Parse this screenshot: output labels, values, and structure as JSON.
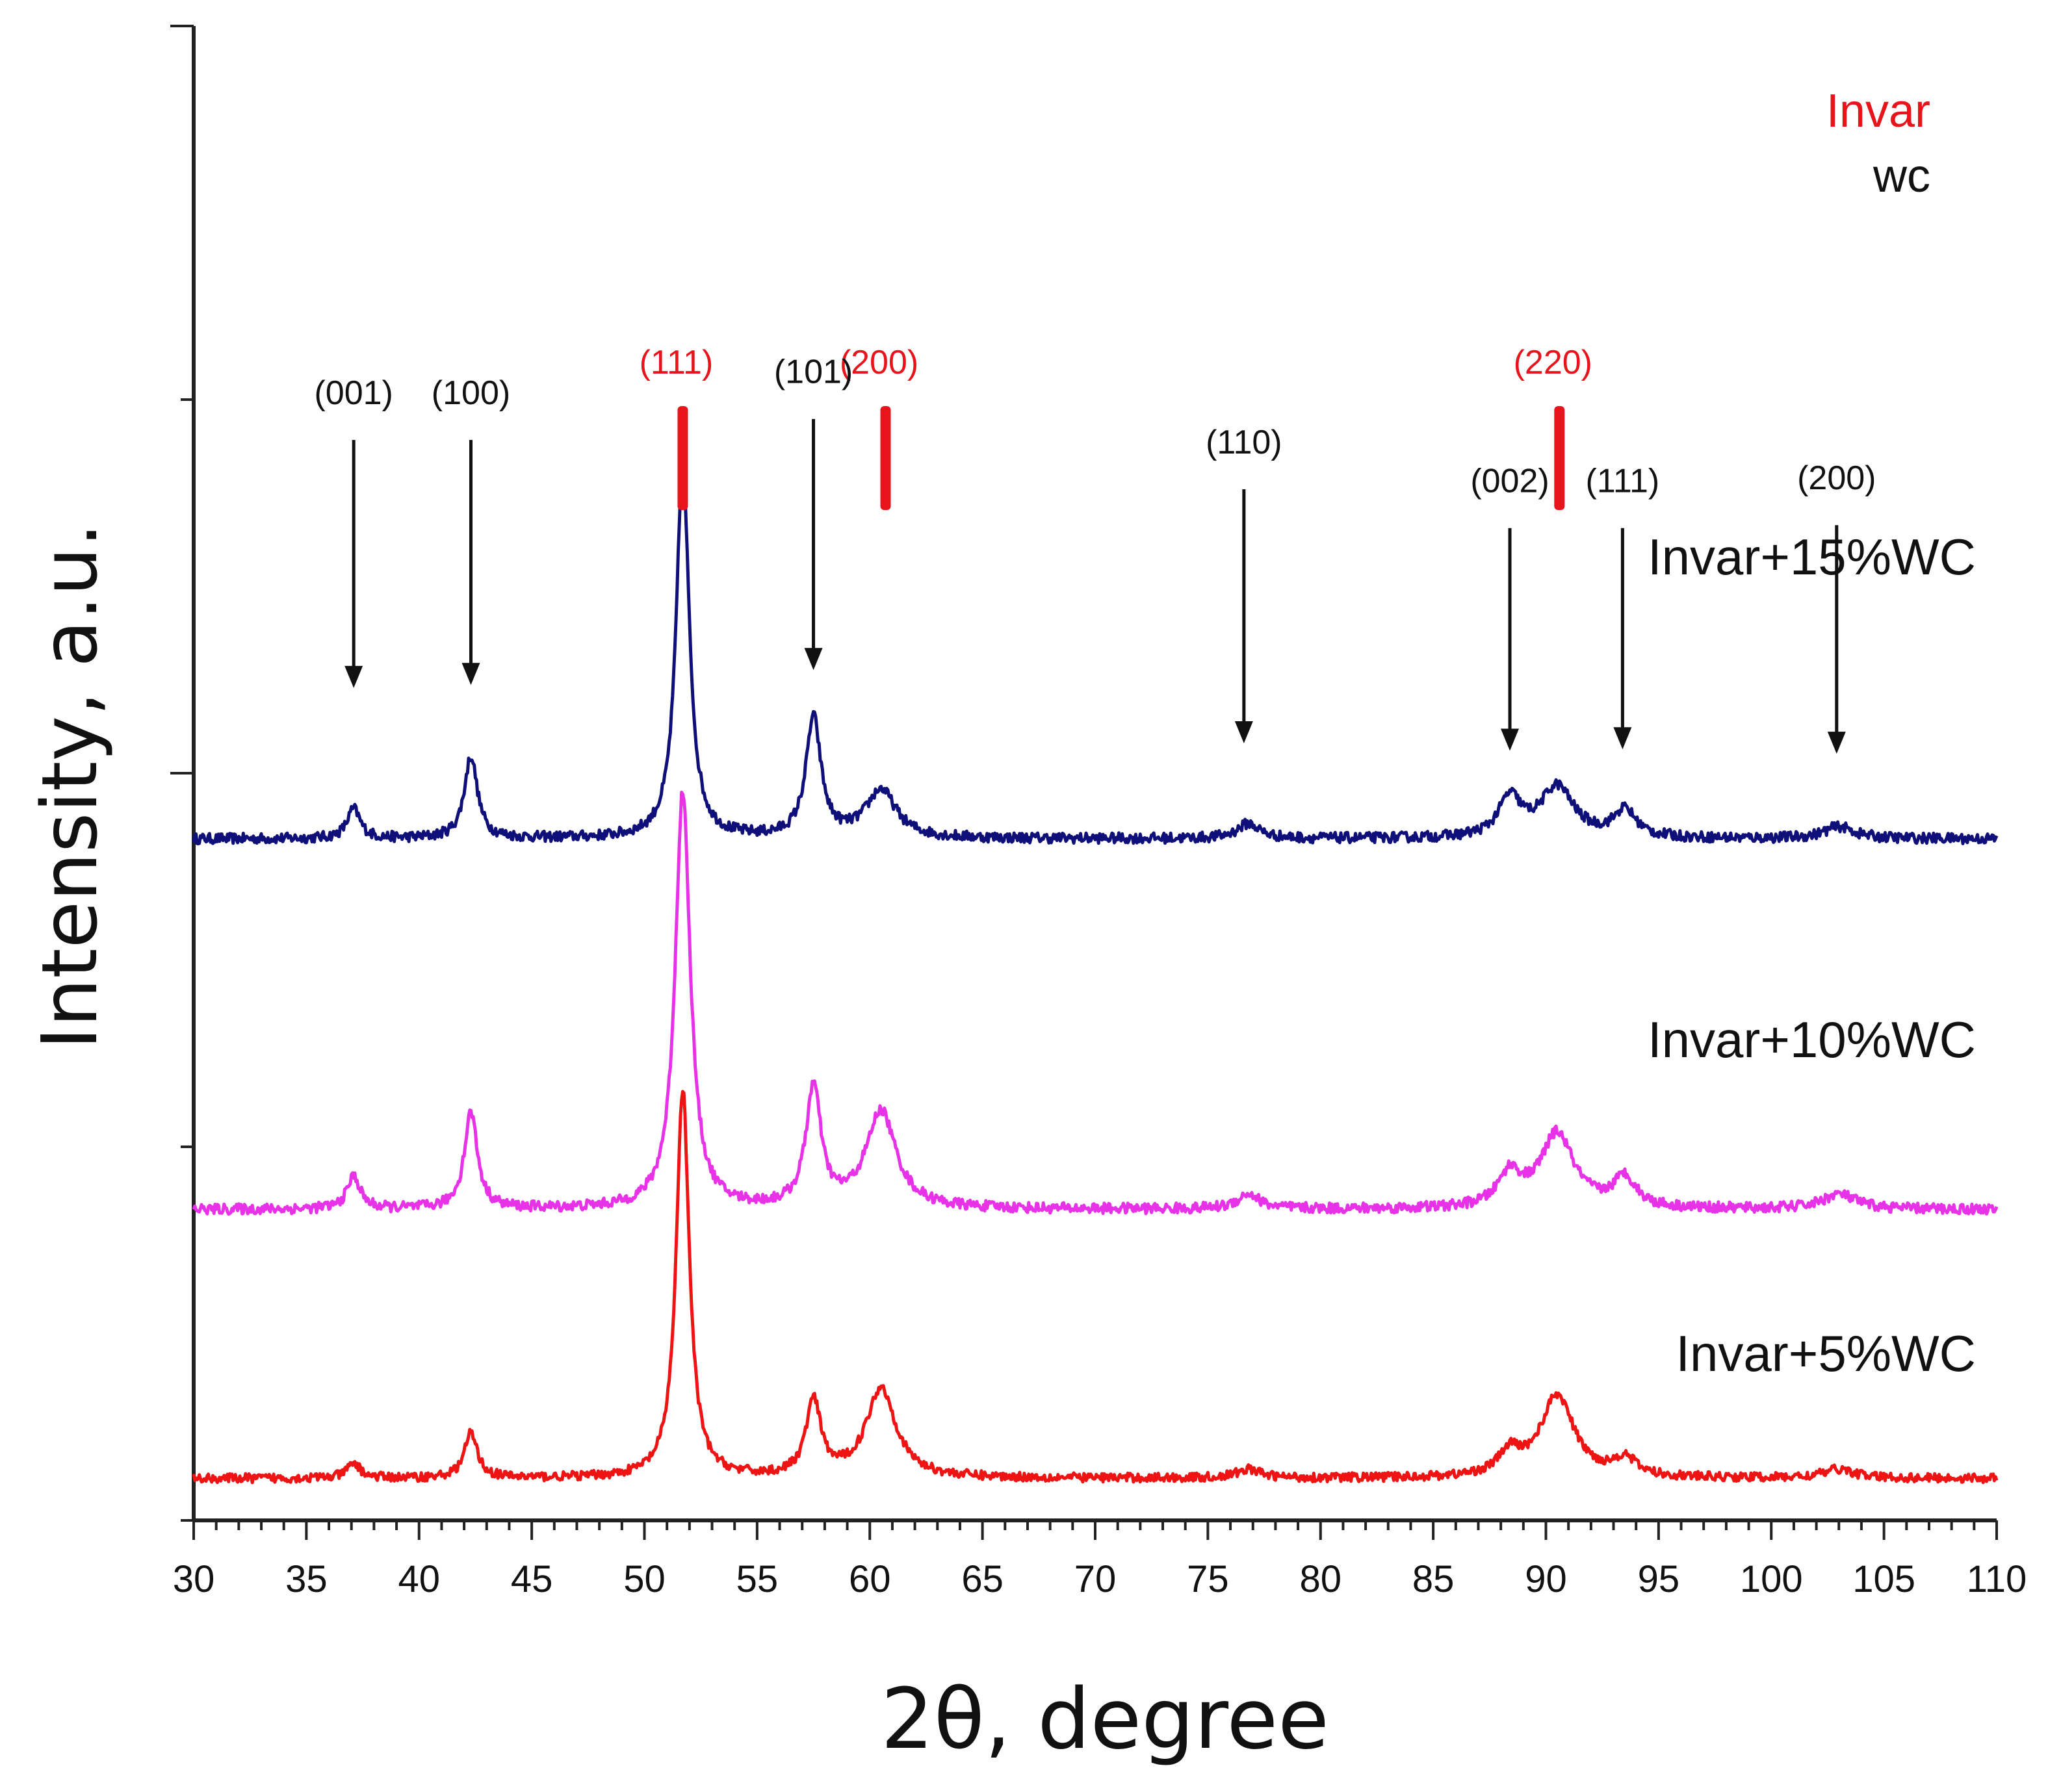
{
  "chart_data": {
    "type": "line",
    "title": "",
    "xlabel": "2θ, degree",
    "ylabel": "Intensity, a.u.",
    "xlim": [
      30,
      110
    ],
    "xticks": [
      30,
      35,
      40,
      45,
      50,
      55,
      60,
      65,
      70,
      75,
      80,
      85,
      90,
      95,
      100,
      105,
      110
    ],
    "xtick_labels": [
      "30",
      "35",
      "40",
      "45",
      "50",
      "55",
      "60",
      "65",
      "70",
      "75",
      "80",
      "85",
      "90",
      "95",
      "100",
      "105",
      "110"
    ],
    "ylim": [
      0,
      100
    ],
    "y_major_ticks": [
      50,
      100
    ],
    "y_minor_ticks": [
      0,
      25,
      75
    ],
    "ytick_labels_shown": false,
    "legend": [
      {
        "label": "Invar",
        "color": "#e8141c"
      },
      {
        "label": "wc",
        "color": "#111111"
      }
    ],
    "series": [
      {
        "name": "Invar+15%WC",
        "color": "#0f0f7a",
        "baseline": 45.6,
        "noise": 0.35,
        "peaks": [
          {
            "x": 37.1,
            "h": 2.0,
            "w": 0.35
          },
          {
            "x": 42.3,
            "h": 5.5,
            "w": 0.35
          },
          {
            "x": 51.7,
            "h": 25.0,
            "w": 0.35
          },
          {
            "x": 57.5,
            "h": 8.0,
            "w": 0.4
          },
          {
            "x": 60.5,
            "h": 3.2,
            "w": 0.8
          },
          {
            "x": 76.8,
            "h": 1.0,
            "w": 0.6
          },
          {
            "x": 88.4,
            "h": 2.6,
            "w": 0.6
          },
          {
            "x": 90.5,
            "h": 3.4,
            "w": 0.9
          },
          {
            "x": 93.5,
            "h": 1.8,
            "w": 0.6
          },
          {
            "x": 103.0,
            "h": 0.8,
            "w": 0.8
          }
        ],
        "label_y": 63.3
      },
      {
        "name": "Invar+10%WC",
        "color": "#e832e8",
        "baseline": 20.8,
        "noise": 0.35,
        "peaks": [
          {
            "x": 37.1,
            "h": 2.2,
            "w": 0.35
          },
          {
            "x": 42.3,
            "h": 6.5,
            "w": 0.35
          },
          {
            "x": 51.7,
            "h": 28.0,
            "w": 0.4
          },
          {
            "x": 57.5,
            "h": 8.0,
            "w": 0.4
          },
          {
            "x": 60.5,
            "h": 6.5,
            "w": 0.8
          },
          {
            "x": 76.8,
            "h": 1.0,
            "w": 0.6
          },
          {
            "x": 88.4,
            "h": 2.2,
            "w": 0.6
          },
          {
            "x": 90.5,
            "h": 5.0,
            "w": 0.9
          },
          {
            "x": 93.5,
            "h": 2.0,
            "w": 0.6
          },
          {
            "x": 103.0,
            "h": 1.0,
            "w": 0.9
          }
        ],
        "label_y": 31.0
      },
      {
        "name": "Invar+5%WC",
        "color": "#ee1414",
        "baseline": 2.8,
        "noise": 0.3,
        "peaks": [
          {
            "x": 37.1,
            "h": 1.0,
            "w": 0.35
          },
          {
            "x": 42.3,
            "h": 3.0,
            "w": 0.35
          },
          {
            "x": 51.7,
            "h": 26.0,
            "w": 0.35
          },
          {
            "x": 57.5,
            "h": 5.0,
            "w": 0.4
          },
          {
            "x": 60.5,
            "h": 6.0,
            "w": 0.8
          },
          {
            "x": 76.8,
            "h": 0.6,
            "w": 0.6
          },
          {
            "x": 88.4,
            "h": 1.5,
            "w": 0.6
          },
          {
            "x": 90.5,
            "h": 5.5,
            "w": 0.9
          },
          {
            "x": 93.5,
            "h": 1.2,
            "w": 0.6
          },
          {
            "x": 103.0,
            "h": 0.6,
            "w": 0.8
          }
        ],
        "label_y": 10.0
      }
    ],
    "annotations": {
      "invar_peaks": [
        {
          "label": "(111)",
          "x": 51.7,
          "color": "#e8141c"
        },
        {
          "label": "(200)",
          "x": 60.7,
          "color": "#e8141c"
        },
        {
          "label": "(220)",
          "x": 90.6,
          "color": "#e8141c"
        }
      ],
      "wc_peaks": [
        {
          "label": "(001)",
          "x": 37.1,
          "label_y": 74.7,
          "arrow_top": 72.3,
          "arrow_tip": 55.7
        },
        {
          "label": "(100)",
          "x": 42.3,
          "label_y": 74.7,
          "arrow_top": 72.3,
          "arrow_tip": 55.9
        },
        {
          "label": "(101)",
          "x": 57.5,
          "label_y": 76.1,
          "arrow_top": 73.7,
          "arrow_tip": 56.9
        },
        {
          "label": "(110)",
          "x": 76.6,
          "label_y": 71.4,
          "arrow_top": 69.0,
          "arrow_tip": 52.0
        },
        {
          "label": "(002)",
          "x": 88.4,
          "label_y": 68.8,
          "arrow_top": 66.4,
          "arrow_tip": 51.5
        },
        {
          "label": "(111)",
          "x": 93.4,
          "label_y": 68.8,
          "arrow_top": 66.4,
          "arrow_tip": 51.6
        },
        {
          "label": "(200)",
          "x": 102.9,
          "label_y": 69.0,
          "arrow_top": 66.6,
          "arrow_tip": 51.3
        }
      ]
    }
  }
}
